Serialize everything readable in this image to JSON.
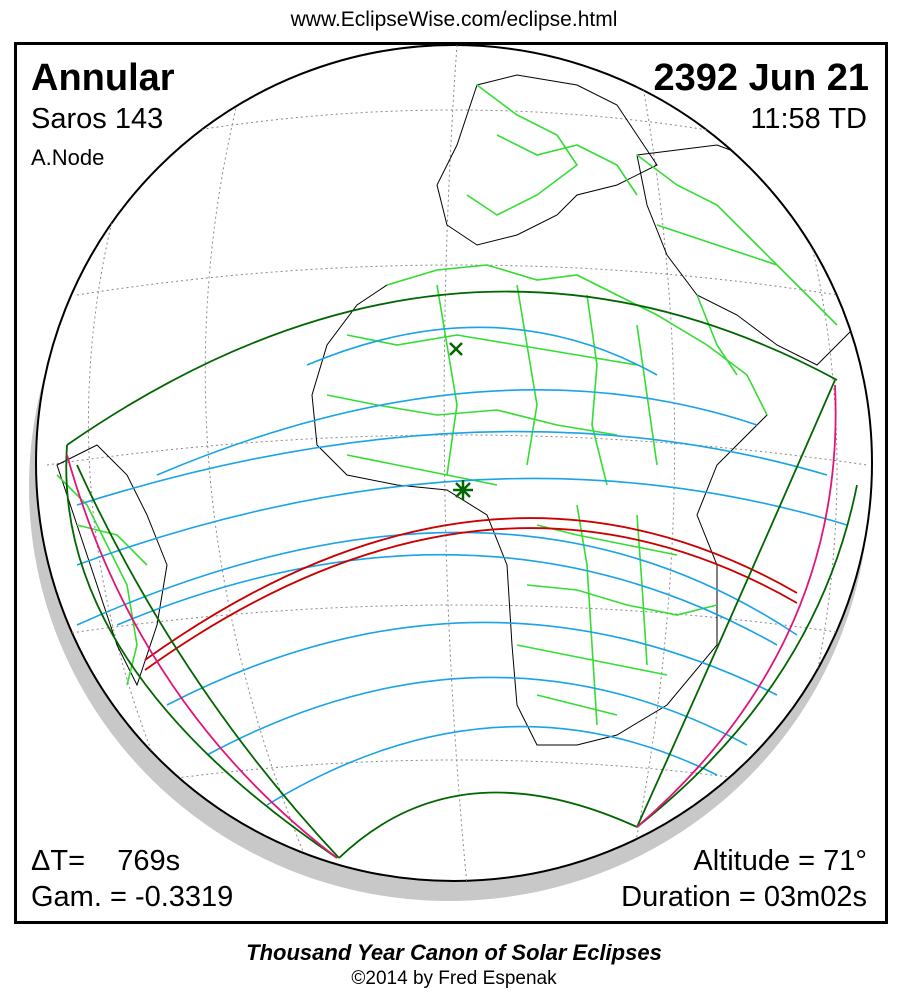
{
  "header": {
    "url": "www.EclipseWise.com/eclipse.html"
  },
  "eclipse": {
    "type": "Annular",
    "date": "2392 Jun 21",
    "saros": "Saros 143",
    "time": "11:58 TD",
    "node": "A.Node",
    "delta_t": "ΔT=    769s",
    "gamma": "Gam. = -0.3319",
    "altitude": "Altitude = 71°",
    "duration": "Duration = 03m02s"
  },
  "footer": {
    "title": "Thousand Year Canon of Solar Eclipses",
    "copyright": "©2014 by Fred Espenak"
  },
  "colors": {
    "globe_outline": "#000000",
    "graticule": "#888888",
    "coastline": "#000000",
    "borders": "#33dd33",
    "penumbra_limits": "#006600",
    "hourly_lines": "#1aa3e6",
    "central_path": "#cc0000",
    "rise_set_curves": "#e0167a",
    "greatest_eclipse_marker": "#006600",
    "night_shading": "#c8c8c8"
  },
  "map_symbols": [
    "greatest-eclipse-star",
    "subsolar-point-cross"
  ]
}
